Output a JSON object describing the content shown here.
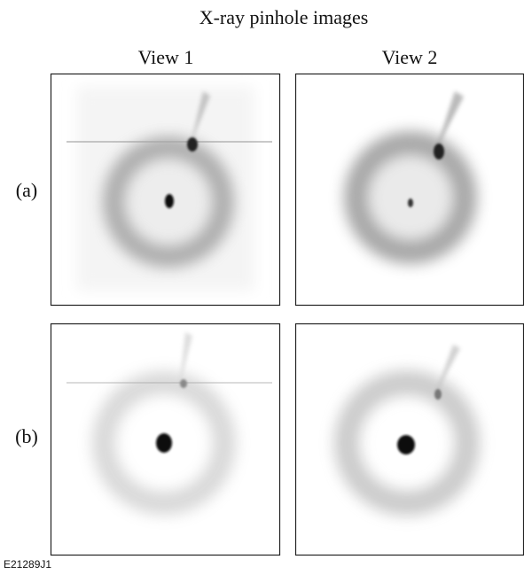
{
  "title": "X-ray pinhole images",
  "columns": [
    "View 1",
    "View 2"
  ],
  "rows": [
    "(a)",
    "(b)"
  ],
  "figure_id": "E21289J1"
}
